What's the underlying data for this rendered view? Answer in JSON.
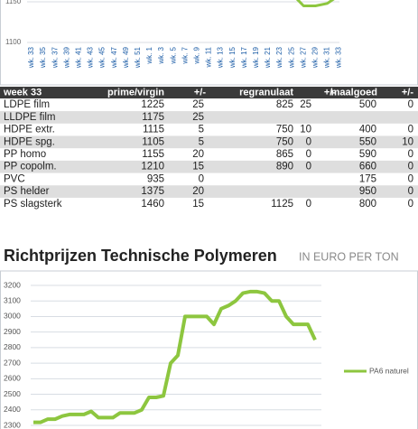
{
  "chart_data": [
    {
      "type": "line",
      "categories": [
        "wk. 33",
        "wk. 35",
        "wk. 37",
        "wk. 39",
        "wk. 41",
        "wk. 43",
        "wk. 45",
        "wk. 47",
        "wk. 49",
        "wk. 51",
        "wk. 1",
        "wk. 3",
        "wk. 5",
        "wk. 7",
        "wk. 9",
        "wk. 11",
        "wk. 13",
        "wk. 15",
        "wk. 17",
        "wk. 19",
        "wk. 21",
        "wk. 23",
        "wk. 25",
        "wk. 27",
        "wk. 29",
        "wk. 31",
        "wk. 33"
      ],
      "values": [
        null,
        null,
        null,
        null,
        null,
        null,
        null,
        null,
        null,
        null,
        null,
        null,
        null,
        null,
        null,
        null,
        null,
        null,
        null,
        null,
        null,
        null,
        1160,
        1145,
        1145,
        1148,
        1158
      ],
      "color": "#8dc63f",
      "ylim": [
        1100,
        1150
      ],
      "yticks": [
        1100,
        1150
      ],
      "grid": true
    },
    {
      "type": "line",
      "series": [
        {
          "name": "PA6 naturel",
          "color": "#8dc63f",
          "values": [
            2320,
            2320,
            2340,
            2340,
            2360,
            2370,
            2370,
            2370,
            2390,
            2350,
            2350,
            2350,
            2380,
            2380,
            2380,
            2400,
            2480,
            2480,
            2490,
            2700,
            2750,
            3000,
            3000,
            3000,
            3000,
            2950,
            3050,
            3070,
            3100,
            3150,
            3160,
            3160,
            3150,
            3100,
            3100,
            3000,
            2950,
            2950,
            2950,
            2850
          ]
        }
      ],
      "ylim": [
        2300,
        3200
      ],
      "yticks": [
        2300,
        2400,
        2500,
        2600,
        2700,
        2800,
        2900,
        3000,
        3100,
        3200
      ],
      "grid": true,
      "legend": "right"
    }
  ],
  "table": {
    "header": [
      "week 33",
      "prime/virgin",
      "+/-",
      "regranulaat",
      "+/-",
      "maalgoed",
      "+/-"
    ],
    "rows": [
      [
        "LDPE film",
        "1225",
        "25",
        "825",
        "25",
        "500",
        "0"
      ],
      [
        "LLDPE film",
        "1175",
        "25",
        null,
        null,
        null,
        null
      ],
      [
        "HDPE extr.",
        "1115",
        "5",
        "750",
        "10",
        "400",
        "0"
      ],
      [
        "HDPE spg.",
        "1105",
        "5",
        "750",
        "0",
        "550",
        "10"
      ],
      [
        "PP homo",
        "1155",
        "20",
        "865",
        "0",
        "590",
        "0"
      ],
      [
        "PP copolm.",
        "1210",
        "15",
        "890",
        "0",
        "660",
        "0"
      ],
      [
        "PVC",
        "935",
        "0",
        null,
        null,
        "175",
        "0"
      ],
      [
        "PS helder",
        "1375",
        "20",
        null,
        null,
        "950",
        "0"
      ],
      [
        "PS slagsterk",
        "1460",
        "15",
        "1125",
        "0",
        "800",
        "0"
      ]
    ]
  },
  "heading": {
    "title": "Richtprijzen Technische Polymeren",
    "subtitle": "IN EURO PER TON"
  }
}
